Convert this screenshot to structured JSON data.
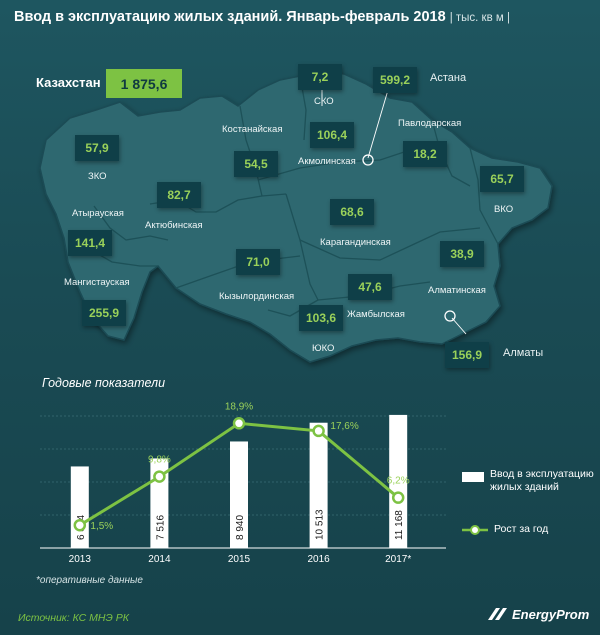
{
  "header": {
    "title": "Ввод в эксплуатацию жилых зданий. Январь-февраль 2018",
    "unit": "| тыс. кв м |"
  },
  "total": {
    "label": "Казахстан",
    "value": "1 875,6"
  },
  "regions": [
    {
      "id": "sko",
      "name": "СКО",
      "value": "7,2"
    },
    {
      "id": "astana",
      "name": "Астана",
      "value": "599,2"
    },
    {
      "id": "zko",
      "name": "ЗКО",
      "value": "57,9"
    },
    {
      "id": "kostanay",
      "name": "Костанайская",
      "value": "54,5"
    },
    {
      "id": "akmola",
      "name": "Акмолинская",
      "value": "106,4"
    },
    {
      "id": "pavlodar",
      "name": "Павлодарская",
      "value": "18,2"
    },
    {
      "id": "vko",
      "name": "ВКО",
      "value": "65,7"
    },
    {
      "id": "atyrau",
      "name": "Атырауская",
      "value": "141,4"
    },
    {
      "id": "aktobe",
      "name": "Актюбинская",
      "value": "82,7"
    },
    {
      "id": "karaganda",
      "name": "Карагандинская",
      "value": "68,6"
    },
    {
      "id": "kyzylorda",
      "name": "Кызылординская",
      "value": "71,0"
    },
    {
      "id": "mangystau",
      "name": "Мангистауская",
      "value": "255,9"
    },
    {
      "id": "almaty_reg",
      "name": "Алматинская",
      "value": "38,9"
    },
    {
      "id": "zhambyl",
      "name": "Жамбылская",
      "value": "47,6"
    },
    {
      "id": "yuko",
      "name": "ЮКО",
      "value": "103,6"
    },
    {
      "id": "almaty",
      "name": "Алматы",
      "value": "156,9"
    }
  ],
  "chart_title": "Годовые показатели",
  "footnote": "*оперативные данные",
  "source": "Источник: КС МНЭ РК",
  "logo": "EnergyProm",
  "colors": {
    "accent": "#7dc243",
    "bar": "#ffffff",
    "background": "#1a4b54"
  },
  "chart_data": {
    "type": "bar",
    "categories": [
      "2013",
      "2014",
      "2015",
      "2016",
      "2017*"
    ],
    "series": [
      {
        "name": "Ввод в эксплуатацию жилых зданий",
        "type": "bar",
        "values": [
          6844,
          7516,
          8940,
          10513,
          11168
        ],
        "labels": [
          "6 844",
          "7 516",
          "8 940",
          "10 513",
          "11 168"
        ]
      },
      {
        "name": "Рост за год",
        "type": "line",
        "values": [
          1.5,
          9.8,
          18.9,
          17.6,
          6.2
        ],
        "labels": [
          "1,5%",
          "9,8%",
          "18,9%",
          "17,6%",
          "6,2%"
        ]
      }
    ],
    "title": "Годовые показатели",
    "legend_position": "right",
    "grid": true
  }
}
